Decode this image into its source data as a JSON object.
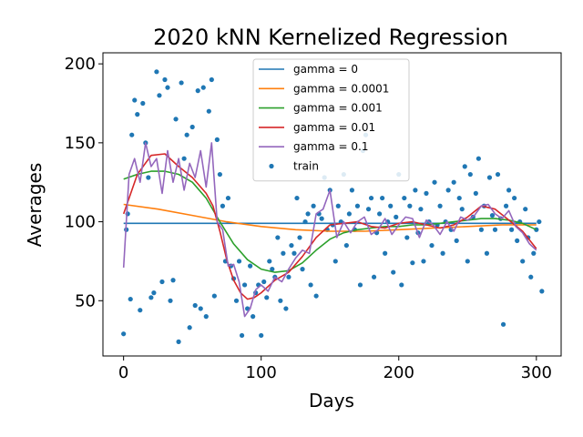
{
  "chart_data": {
    "type": "line",
    "title": "2020 kNN Kernelized Regression",
    "xlabel": "Days",
    "ylabel": "Averages",
    "xlim": [
      -15,
      318
    ],
    "ylim": [
      15,
      207
    ],
    "xticks": [
      0,
      100,
      200,
      300
    ],
    "yticks": [
      50,
      100,
      150,
      200
    ],
    "grid": false,
    "legend_position": "top-center",
    "series": [
      {
        "name": "gamma = 0",
        "color": "#1f77b4",
        "x": [
          0,
          300
        ],
        "y": [
          99,
          99
        ]
      },
      {
        "name": "gamma = 0.0001",
        "color": "#ff7f0e",
        "x": [
          0,
          25,
          50,
          75,
          100,
          125,
          150,
          175,
          200,
          225,
          250,
          275,
          300
        ],
        "y": [
          111,
          108,
          104,
          100,
          97,
          95,
          94,
          94,
          95,
          96,
          97,
          98,
          98
        ]
      },
      {
        "name": "gamma = 0.001",
        "color": "#2ca02c",
        "x": [
          0,
          10,
          20,
          30,
          40,
          50,
          60,
          70,
          80,
          90,
          100,
          110,
          120,
          130,
          140,
          150,
          160,
          170,
          180,
          190,
          200,
          210,
          220,
          230,
          240,
          250,
          260,
          270,
          280,
          290,
          300
        ],
        "y": [
          127,
          130,
          132,
          132,
          130,
          125,
          115,
          100,
          86,
          76,
          70,
          68,
          69,
          74,
          82,
          89,
          93,
          95,
          96,
          97,
          97,
          98,
          98,
          99,
          100,
          101,
          102,
          102,
          101,
          99,
          95
        ]
      },
      {
        "name": "gamma = 0.01",
        "color": "#d62728",
        "x": [
          0,
          10,
          20,
          30,
          40,
          50,
          60,
          65,
          70,
          75,
          80,
          85,
          90,
          95,
          100,
          110,
          120,
          130,
          140,
          150,
          160,
          170,
          180,
          190,
          200,
          210,
          220,
          230,
          240,
          250,
          260,
          270,
          280,
          290,
          300
        ],
        "y": [
          105,
          130,
          142,
          143,
          135,
          128,
          118,
          110,
          94,
          76,
          63,
          55,
          51,
          52,
          55,
          63,
          68,
          78,
          90,
          98,
          99,
          100,
          97,
          96,
          99,
          100,
          98,
          96,
          98,
          103,
          110,
          108,
          101,
          94,
          83
        ]
      },
      {
        "name": "gamma = 0.1",
        "color": "#9467bd",
        "x": [
          0,
          4,
          8,
          12,
          16,
          20,
          24,
          28,
          32,
          36,
          40,
          44,
          48,
          52,
          56,
          60,
          64,
          68,
          72,
          76,
          80,
          84,
          88,
          92,
          96,
          100,
          105,
          110,
          115,
          120,
          125,
          130,
          135,
          140,
          145,
          150,
          155,
          160,
          165,
          170,
          175,
          180,
          185,
          190,
          195,
          200,
          205,
          210,
          215,
          220,
          225,
          230,
          235,
          240,
          245,
          250,
          255,
          260,
          265,
          270,
          275,
          280,
          285,
          290,
          295,
          300
        ],
        "y": [
          71,
          130,
          140,
          125,
          150,
          135,
          140,
          118,
          145,
          125,
          140,
          120,
          137,
          128,
          145,
          122,
          150,
          100,
          95,
          72,
          73,
          62,
          40,
          45,
          57,
          60,
          56,
          65,
          62,
          70,
          77,
          82,
          80,
          105,
          108,
          120,
          90,
          100,
          93,
          100,
          103,
          92,
          95,
          102,
          92,
          98,
          103,
          102,
          90,
          101,
          98,
          92,
          100,
          94,
          103,
          101,
          104,
          110,
          111,
          105,
          102,
          107,
          97,
          93,
          86,
          82
        ]
      }
    ],
    "scatter": {
      "name": "train",
      "color": "#1f77b4",
      "x": [
        0,
        2,
        3,
        5,
        6,
        8,
        10,
        12,
        14,
        16,
        18,
        20,
        22,
        24,
        26,
        28,
        30,
        32,
        34,
        36,
        38,
        40,
        42,
        44,
        46,
        48,
        50,
        52,
        54,
        56,
        58,
        60,
        62,
        64,
        66,
        68,
        70,
        72,
        74,
        76,
        78,
        80,
        82,
        84,
        86,
        88,
        90,
        92,
        94,
        96,
        98,
        100,
        102,
        104,
        106,
        108,
        110,
        112,
        114,
        116,
        118,
        120,
        122,
        124,
        126,
        128,
        130,
        132,
        134,
        136,
        138,
        140,
        142,
        144,
        146,
        148,
        150,
        152,
        154,
        156,
        158,
        160,
        162,
        164,
        166,
        168,
        170,
        172,
        174,
        176,
        178,
        180,
        182,
        184,
        186,
        188,
        190,
        192,
        194,
        196,
        198,
        200,
        202,
        204,
        206,
        208,
        210,
        212,
        214,
        216,
        218,
        220,
        222,
        224,
        226,
        228,
        230,
        232,
        234,
        236,
        238,
        240,
        242,
        244,
        246,
        248,
        250,
        252,
        254,
        256,
        258,
        260,
        262,
        264,
        266,
        268,
        270,
        272,
        274,
        276,
        278,
        280,
        282,
        284,
        286,
        288,
        290,
        292,
        294,
        296,
        298,
        300,
        302,
        304
      ],
      "y": [
        29,
        95,
        105,
        51,
        155,
        177,
        168,
        44,
        175,
        150,
        128,
        52,
        55,
        195,
        180,
        62,
        190,
        185,
        50,
        63,
        165,
        24,
        188,
        140,
        155,
        33,
        160,
        47,
        183,
        45,
        185,
        40,
        170,
        190,
        53,
        152,
        130,
        110,
        75,
        115,
        72,
        64,
        50,
        75,
        28,
        60,
        45,
        72,
        40,
        55,
        60,
        28,
        62,
        52,
        75,
        70,
        65,
        90,
        50,
        80,
        45,
        65,
        85,
        80,
        115,
        90,
        70,
        100,
        105,
        60,
        110,
        53,
        105,
        102,
        128,
        95,
        120,
        98,
        75,
        110,
        100,
        130,
        85,
        105,
        120,
        95,
        110,
        60,
        145,
        155,
        108,
        115,
        65,
        93,
        105,
        115,
        80,
        100,
        110,
        68,
        103,
        130,
        60,
        115,
        90,
        110,
        74,
        120,
        93,
        108,
        75,
        118,
        100,
        85,
        125,
        98,
        110,
        80,
        100,
        120,
        95,
        125,
        88,
        115,
        108,
        135,
        75,
        130,
        103,
        118,
        140,
        95,
        110,
        80,
        128,
        104,
        95,
        130,
        102,
        35,
        110,
        120,
        95,
        115,
        88,
        100,
        75,
        108,
        90,
        65,
        80,
        95,
        100,
        56
      ]
    }
  }
}
